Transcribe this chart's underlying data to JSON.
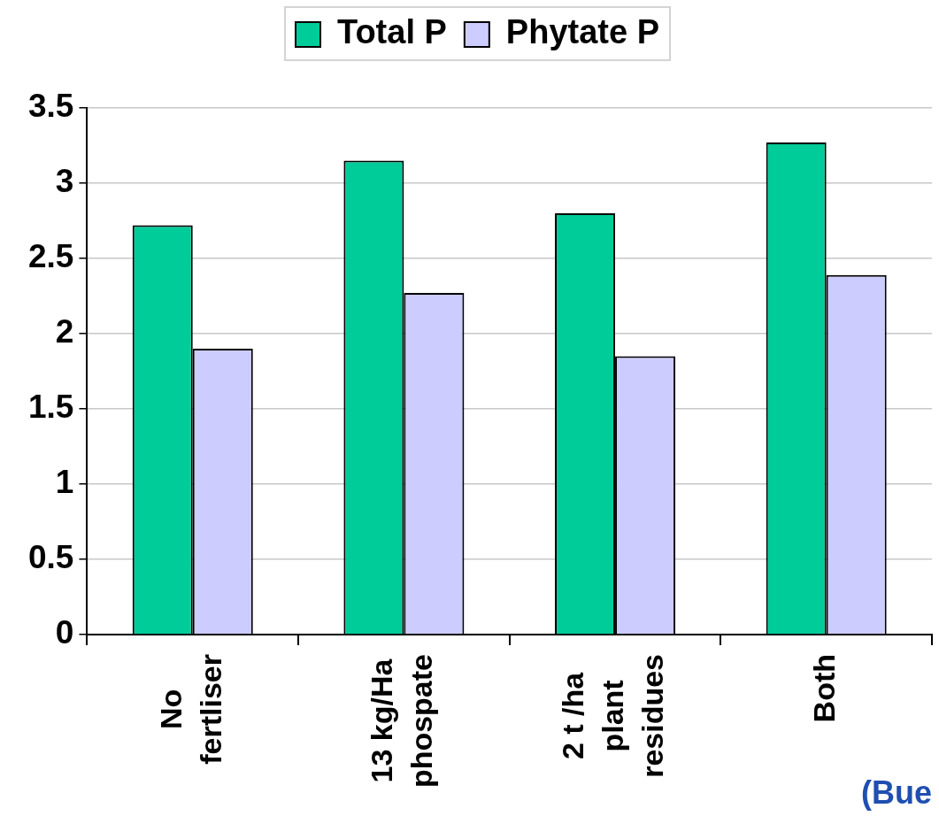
{
  "chart_data": {
    "type": "bar",
    "categories": [
      "No fertliser",
      "13 kg/Ha phospate",
      "2 t /ha plant residues",
      "Both"
    ],
    "series": [
      {
        "name": "Total P",
        "color": "#00cc99",
        "values": [
          2.72,
          3.15,
          2.8,
          3.27
        ]
      },
      {
        "name": "Phytate P",
        "color": "#ccccff",
        "values": [
          1.9,
          2.27,
          1.85,
          2.39
        ]
      }
    ],
    "ylim": [
      0,
      3.5
    ],
    "yticks": [
      0,
      0.5,
      1,
      1.5,
      2,
      2.5,
      3,
      3.5
    ],
    "grid": "y",
    "legend": "top",
    "annotations": [
      "(Bue"
    ]
  }
}
